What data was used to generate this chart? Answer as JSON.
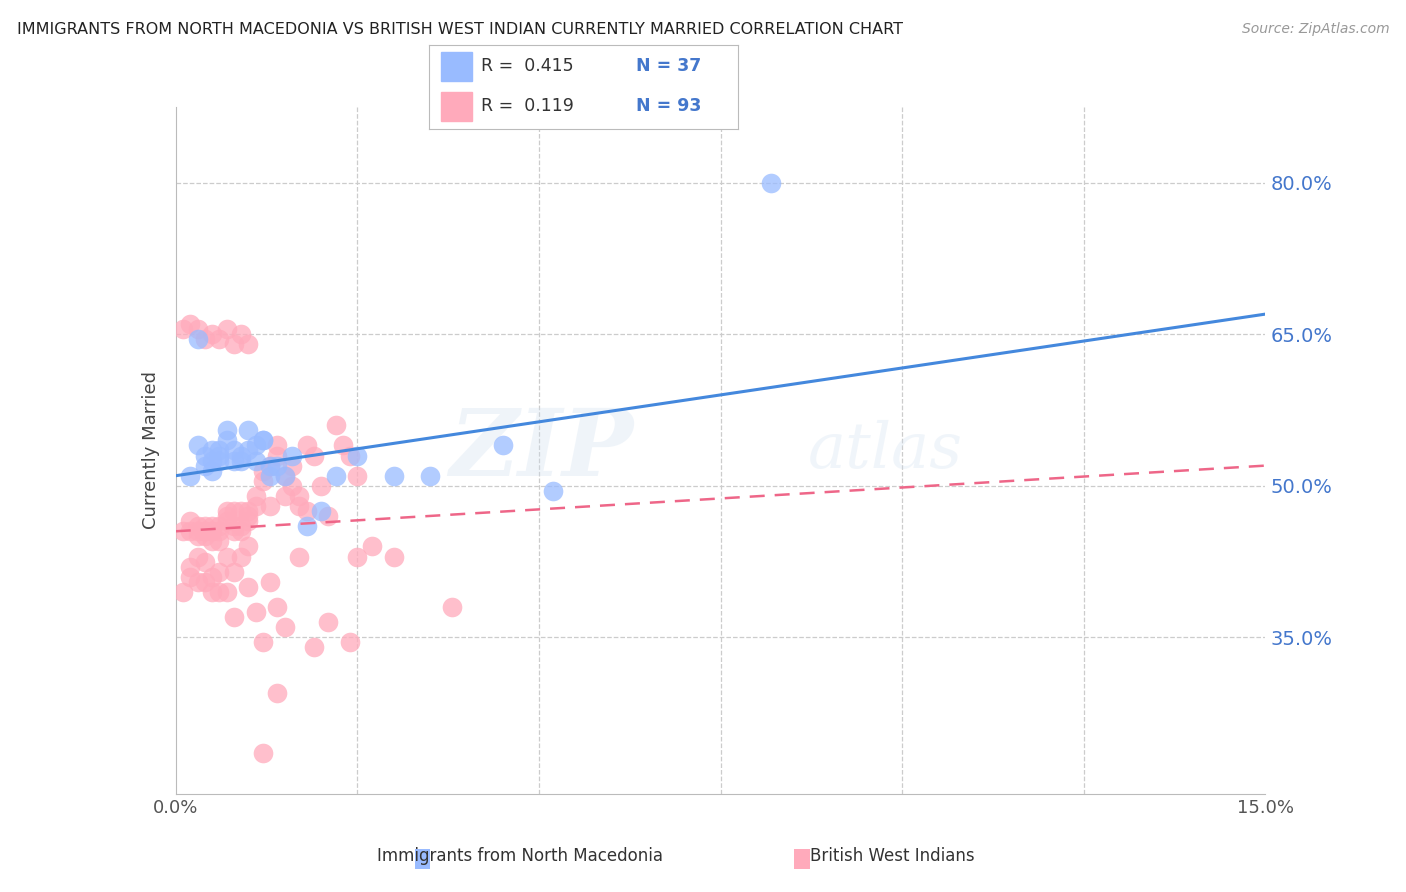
{
  "title": "IMMIGRANTS FROM NORTH MACEDONIA VS BRITISH WEST INDIAN CURRENTLY MARRIED CORRELATION CHART",
  "source": "Source: ZipAtlas.com",
  "ylabel": "Currently Married",
  "ytick_labels": [
    "35.0%",
    "50.0%",
    "65.0%",
    "80.0%"
  ],
  "ytick_values": [
    0.35,
    0.5,
    0.65,
    0.8
  ],
  "xtick_labels": [
    "0.0%",
    "",
    "",
    "",
    "",
    "",
    "15.0%"
  ],
  "xtick_values": [
    0.0,
    0.025,
    0.05,
    0.075,
    0.1,
    0.125,
    0.15
  ],
  "xlim": [
    0.0,
    0.15
  ],
  "ylim": [
    0.195,
    0.875
  ],
  "legend_r1": "R =  0.415",
  "legend_n1": "N = 37",
  "legend_r2": "R =  0.119",
  "legend_n2": "N = 93",
  "label1": "Immigrants from North Macedonia",
  "label2": "British West Indians",
  "blue_color": "#99BBFF",
  "pink_color": "#FFAABB",
  "blue_line_color": "#4488DD",
  "pink_line_color": "#EE6688",
  "watermark_zip": "ZIP",
  "watermark_atlas": "atlas",
  "blue_line_x0": 0.0,
  "blue_line_y0": 0.51,
  "blue_line_x1": 0.15,
  "blue_line_y1": 0.67,
  "pink_line_x0": 0.0,
  "pink_line_y0": 0.455,
  "pink_line_x1": 0.15,
  "pink_line_y1": 0.52,
  "blue_dots_x": [
    0.002,
    0.003,
    0.003,
    0.004,
    0.004,
    0.005,
    0.005,
    0.005,
    0.006,
    0.006,
    0.006,
    0.007,
    0.007,
    0.008,
    0.008,
    0.009,
    0.009,
    0.01,
    0.01,
    0.011,
    0.011,
    0.012,
    0.012,
    0.013,
    0.013,
    0.014,
    0.015,
    0.016,
    0.018,
    0.02,
    0.022,
    0.025,
    0.03,
    0.035,
    0.082,
    0.052,
    0.045
  ],
  "blue_dots_y": [
    0.51,
    0.645,
    0.54,
    0.53,
    0.52,
    0.535,
    0.525,
    0.515,
    0.535,
    0.53,
    0.525,
    0.555,
    0.545,
    0.525,
    0.535,
    0.525,
    0.53,
    0.535,
    0.555,
    0.54,
    0.525,
    0.545,
    0.545,
    0.51,
    0.52,
    0.52,
    0.51,
    0.53,
    0.46,
    0.475,
    0.51,
    0.53,
    0.51,
    0.51,
    0.8,
    0.495,
    0.54
  ],
  "pink_dots_x": [
    0.001,
    0.002,
    0.002,
    0.003,
    0.003,
    0.003,
    0.004,
    0.004,
    0.004,
    0.005,
    0.005,
    0.005,
    0.006,
    0.006,
    0.006,
    0.007,
    0.007,
    0.007,
    0.008,
    0.008,
    0.008,
    0.009,
    0.009,
    0.009,
    0.01,
    0.01,
    0.01,
    0.011,
    0.011,
    0.012,
    0.012,
    0.013,
    0.013,
    0.014,
    0.014,
    0.015,
    0.015,
    0.016,
    0.016,
    0.017,
    0.017,
    0.018,
    0.018,
    0.019,
    0.02,
    0.021,
    0.022,
    0.023,
    0.024,
    0.025,
    0.001,
    0.002,
    0.002,
    0.003,
    0.003,
    0.004,
    0.004,
    0.005,
    0.005,
    0.006,
    0.006,
    0.007,
    0.007,
    0.008,
    0.008,
    0.009,
    0.01,
    0.01,
    0.011,
    0.012,
    0.013,
    0.014,
    0.015,
    0.017,
    0.019,
    0.021,
    0.024,
    0.027,
    0.03,
    0.038,
    0.001,
    0.002,
    0.003,
    0.004,
    0.005,
    0.006,
    0.007,
    0.008,
    0.009,
    0.01,
    0.012,
    0.014,
    0.025
  ],
  "pink_dots_y": [
    0.455,
    0.455,
    0.465,
    0.45,
    0.46,
    0.455,
    0.45,
    0.46,
    0.455,
    0.445,
    0.46,
    0.455,
    0.445,
    0.46,
    0.455,
    0.475,
    0.465,
    0.47,
    0.46,
    0.475,
    0.455,
    0.46,
    0.475,
    0.455,
    0.465,
    0.475,
    0.47,
    0.49,
    0.48,
    0.505,
    0.515,
    0.52,
    0.48,
    0.54,
    0.53,
    0.51,
    0.49,
    0.5,
    0.52,
    0.49,
    0.48,
    0.475,
    0.54,
    0.53,
    0.5,
    0.47,
    0.56,
    0.54,
    0.53,
    0.51,
    0.395,
    0.42,
    0.41,
    0.405,
    0.43,
    0.405,
    0.425,
    0.395,
    0.41,
    0.395,
    0.415,
    0.395,
    0.43,
    0.415,
    0.37,
    0.43,
    0.4,
    0.44,
    0.375,
    0.345,
    0.405,
    0.38,
    0.36,
    0.43,
    0.34,
    0.365,
    0.345,
    0.44,
    0.43,
    0.38,
    0.655,
    0.66,
    0.655,
    0.645,
    0.65,
    0.645,
    0.655,
    0.64,
    0.65,
    0.64,
    0.235,
    0.295,
    0.43
  ]
}
